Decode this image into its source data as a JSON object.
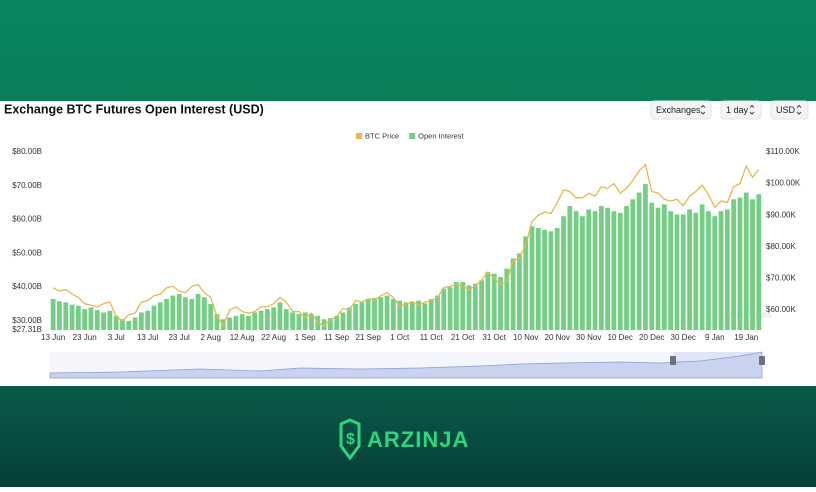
{
  "brand": "ARZINJA",
  "controls": [
    "Exchanges",
    "1 day",
    "USD"
  ],
  "watermark": "CoinGlass",
  "chart_data": {
    "type": "bar",
    "title": "Exchange BTC Futures Open Interest (USD)",
    "categories": [
      "13 Jun",
      null,
      null,
      null,
      null,
      "23 Jun",
      null,
      null,
      null,
      null,
      "3 Jul",
      null,
      null,
      null,
      null,
      "13 Jul",
      null,
      null,
      null,
      null,
      "23 Jul",
      null,
      null,
      null,
      null,
      "2 Aug",
      null,
      null,
      null,
      null,
      "12 Aug",
      null,
      null,
      null,
      null,
      "22 Aug",
      null,
      null,
      null,
      null,
      "1 Sep",
      null,
      null,
      null,
      null,
      "11 Sep",
      null,
      null,
      null,
      null,
      "21 Sep",
      null,
      null,
      null,
      null,
      "1 Oct",
      null,
      null,
      null,
      null,
      "11 Oct",
      null,
      null,
      null,
      null,
      "21 Oct",
      null,
      null,
      null,
      null,
      "31 Oct",
      null,
      null,
      null,
      null,
      "10 Nov",
      null,
      null,
      null,
      null,
      "20 Nov",
      null,
      null,
      null,
      null,
      "30 Nov",
      null,
      null,
      null,
      null,
      "10 Dec",
      null,
      null,
      null,
      null,
      "20 Dec",
      null,
      null,
      null,
      null,
      "30 Dec",
      null,
      null,
      null,
      null,
      "9 Jan",
      null,
      null,
      null,
      null,
      "19 Jan",
      null,
      null
    ],
    "series": [
      {
        "name": "BTC Price",
        "type": "line",
        "axis": "y2",
        "color": "#e6b84d",
        "values": [
          67,
          66,
          66.5,
          65,
          64,
          62,
          61.5,
          61,
          62,
          62.5,
          58,
          56.5,
          58.5,
          59,
          62.5,
          63,
          64.5,
          65,
          67,
          67.5,
          66,
          65.5,
          67.5,
          68,
          65.5,
          64,
          58,
          55,
          60,
          61,
          59.5,
          59,
          59.5,
          61,
          61,
          62,
          64,
          62.5,
          59.5,
          59.5,
          57.5,
          59,
          56,
          55,
          57,
          58,
          60.5,
          60,
          63,
          62.5,
          63.5,
          63,
          64.5,
          65.5,
          64,
          61,
          62,
          62.5,
          61.5,
          62.5,
          63,
          64,
          67,
          67.5,
          68,
          67.5,
          66.5,
          67.5,
          69.5,
          72,
          70,
          68,
          69,
          75.5,
          76.5,
          80.5,
          88,
          90,
          91,
          90.5,
          94,
          98,
          97.5,
          95.5,
          95.5,
          97,
          96,
          99,
          98.5,
          100,
          97,
          98.5,
          101,
          104,
          106,
          97.5,
          97,
          95,
          94.5,
          95,
          93,
          96,
          97.5,
          99.5,
          96.5,
          92.5,
          94.5,
          94,
          99,
          100,
          105.5,
          102,
          104.5
        ]
      },
      {
        "name": "Open Interest",
        "type": "bar",
        "color": "#74cf85",
        "values": [
          36.5,
          35.8,
          35.5,
          34.8,
          34.5,
          33.5,
          34,
          33.2,
          32.5,
          33,
          31.5,
          30.5,
          30,
          31,
          32.5,
          33,
          34.5,
          35.5,
          36.5,
          37.5,
          38,
          37,
          36.5,
          38,
          37,
          35,
          32,
          30.5,
          31,
          31.5,
          32,
          31.5,
          32.5,
          33,
          33.5,
          34,
          35.5,
          33.5,
          32.5,
          32,
          32.5,
          32,
          31.5,
          30.5,
          30.8,
          31.5,
          32.5,
          34,
          35,
          35.5,
          36.5,
          36.8,
          37,
          37.5,
          36.5,
          36,
          35.5,
          35.8,
          36,
          35.2,
          36.5,
          37.5,
          39.5,
          40,
          41.5,
          41.5,
          40.5,
          41,
          42,
          44.5,
          44,
          43,
          45.5,
          48.5,
          50,
          55,
          58,
          57.5,
          57,
          56.5,
          57.5,
          61,
          64,
          62.5,
          61,
          63,
          62.5,
          64,
          63.5,
          62.5,
          62,
          64,
          66,
          68,
          70.5,
          65,
          63.5,
          64.5,
          62.5,
          61.5,
          61.5,
          63,
          62,
          64.5,
          62.5,
          61,
          62.5,
          63,
          66,
          66.5,
          68,
          66,
          67.5
        ]
      }
    ],
    "ylim": [
      27.31,
      80
    ],
    "yticks": [
      {
        "value": 80,
        "label": "$80.00B"
      },
      {
        "value": 70,
        "label": "$70.00B"
      },
      {
        "value": 60,
        "label": "$60.00B"
      },
      {
        "value": 50,
        "label": "$50.00B"
      },
      {
        "value": 40,
        "label": "$40.00B"
      },
      {
        "value": 30,
        "label": "$30.00B"
      },
      {
        "value": 27.31,
        "label": "$27.31B"
      }
    ],
    "y2lim": [
      53.67,
      110
    ],
    "y2ticks": [
      {
        "value": 110,
        "label": "$110.00K"
      },
      {
        "value": 100,
        "label": "$100.00K"
      },
      {
        "value": 90,
        "label": "$90.00K"
      },
      {
        "value": 80,
        "label": "$80.00K"
      },
      {
        "value": 70,
        "label": "$70.00K"
      },
      {
        "value": 60,
        "label": "$60.00K"
      }
    ],
    "legend": "top"
  }
}
